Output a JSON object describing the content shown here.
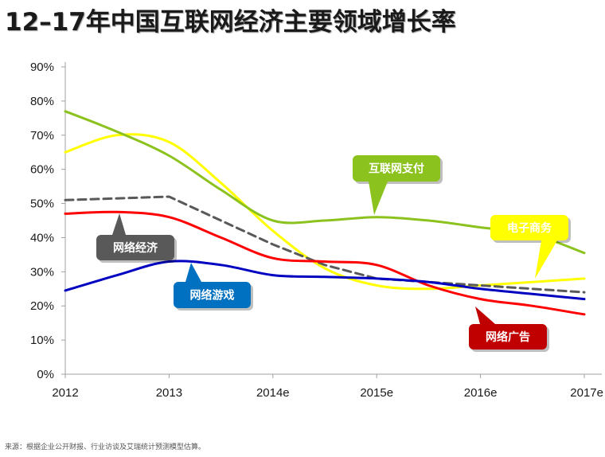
{
  "chart_data": {
    "type": "line",
    "title": "12–17年中国互联网经济主要领域增长率",
    "xlabel": "",
    "ylabel": "",
    "categories": [
      "2012",
      "2013",
      "2014e",
      "2015e",
      "2016e",
      "2017e"
    ],
    "ylim": [
      0,
      90
    ],
    "yticks": [
      "0%",
      "10%",
      "20%",
      "30%",
      "40%",
      "50%",
      "60%",
      "70%",
      "80%",
      "90%"
    ],
    "series": [
      {
        "name": "网络经济",
        "color": "#595959",
        "dashed": true,
        "label_bg": "#595959",
        "label_text": "网络经济",
        "x": [
          0,
          1,
          1.5,
          2,
          2.5,
          3,
          3.5,
          4,
          4.5,
          5
        ],
        "values": [
          51,
          52,
          45,
          38,
          32,
          28,
          27,
          26,
          25,
          24
        ]
      },
      {
        "name": "互联网支付",
        "color": "#8CC21E",
        "label_bg": "#8CC21E",
        "label_text": "互联网支付",
        "x": [
          0,
          0.5,
          1,
          1.5,
          2,
          2.5,
          3,
          3.5,
          4,
          4.5,
          5
        ],
        "values": [
          77,
          71,
          64,
          54,
          45,
          45,
          46,
          45,
          43,
          41,
          35.5
        ]
      },
      {
        "name": "电子商务",
        "color": "#FFFF00",
        "label_bg": "#FFFF00",
        "label_text": "电子商务",
        "x": [
          0,
          0.5,
          1,
          1.5,
          2,
          2.5,
          3,
          3.5,
          4,
          4.5,
          5
        ],
        "values": [
          65,
          70,
          68,
          56,
          42,
          31,
          26,
          25,
          26,
          27,
          28
        ]
      },
      {
        "name": "网络广告",
        "color": "#FF0000",
        "label_bg": "#C00000",
        "label_text": "网络广告",
        "x": [
          0,
          0.5,
          1,
          1.5,
          2,
          2.5,
          3,
          3.5,
          4,
          4.5,
          5
        ],
        "values": [
          47,
          47.5,
          46,
          40,
          34,
          33,
          32,
          26,
          22,
          20,
          17.5
        ]
      },
      {
        "name": "网络游戏",
        "color": "#0000C0",
        "label_bg": "#0070C0",
        "label_text": "网络游戏",
        "x": [
          0,
          0.5,
          1,
          1.5,
          2,
          2.5,
          3,
          3.5,
          4,
          4.5,
          5
        ],
        "values": [
          24.5,
          29,
          33,
          32,
          29,
          28.5,
          28,
          27,
          25,
          23.5,
          22
        ]
      }
    ]
  },
  "source_note": "来源：根据企业公开财报、行业访谈及艾瑞统计预测模型估算。"
}
